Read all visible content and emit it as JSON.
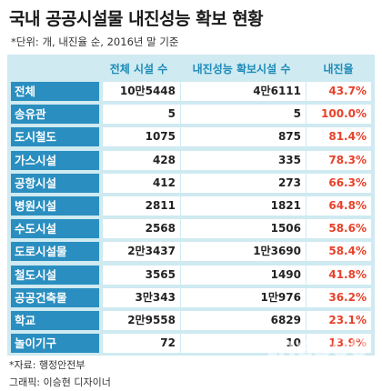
{
  "title": "국내 공공시설물 내진성능 확보 현황",
  "subtitle": "*단위: 개, 내진율 순, 2016년 말 기준",
  "chart_data": {
    "type": "table",
    "columns": [
      "",
      "전체 시설 수",
      "내진성능 확보시설 수",
      "내진율"
    ],
    "rows": [
      {
        "label": "전체",
        "total": "10만5448",
        "secured": "4만6111",
        "rate": "43.7%"
      },
      {
        "label": "송유관",
        "total": "5",
        "secured": "5",
        "rate": "100.0%"
      },
      {
        "label": "도시철도",
        "total": "1075",
        "secured": "875",
        "rate": "81.4%"
      },
      {
        "label": "가스시설",
        "total": "428",
        "secured": "335",
        "rate": "78.3%"
      },
      {
        "label": "공항시설",
        "total": "412",
        "secured": "273",
        "rate": "66.3%"
      },
      {
        "label": "병원시설",
        "total": "2811",
        "secured": "1821",
        "rate": "64.8%"
      },
      {
        "label": "수도시설",
        "total": "2568",
        "secured": "1506",
        "rate": "58.6%"
      },
      {
        "label": "도로시설물",
        "total": "2만3437",
        "secured": "1만3690",
        "rate": "58.4%"
      },
      {
        "label": "철도시설",
        "total": "3565",
        "secured": "1490",
        "rate": "41.8%"
      },
      {
        "label": "공공건축물",
        "total": "3만343",
        "secured": "1만976",
        "rate": "36.2%"
      },
      {
        "label": "학교",
        "total": "2만9558",
        "secured": "6829",
        "rate": "23.1%"
      },
      {
        "label": "놀이기구",
        "total": "72",
        "secured": "10",
        "rate": "13.9%"
      }
    ]
  },
  "source": "*자료: 행정안전부",
  "credit": "그래픽: 이승현 디자이너",
  "watermark": "the300",
  "colors": {
    "label_bg": "#2a8fc0",
    "panel_bg": "#cfeaf1",
    "header_text": "#1b8ab8",
    "rate_text": "#e8412a"
  }
}
